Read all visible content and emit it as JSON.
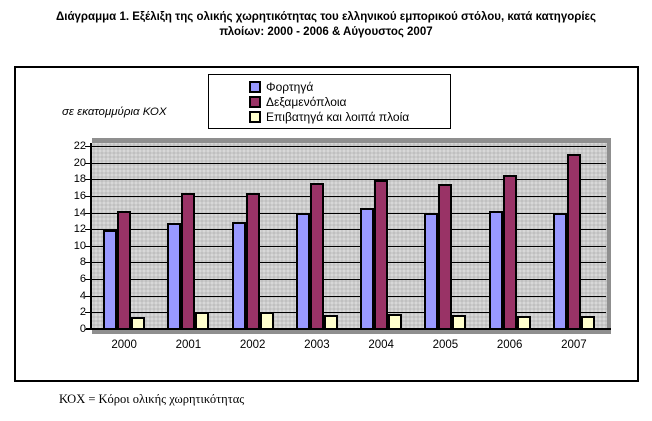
{
  "title": {
    "line1": "Διάγραμμα 1. Εξέλιξη της ολικής χωρητικότητας του ελληνικού εμπορικού στόλου, κατά κατηγορίες",
    "line2": "πλοίων: 2000 - 2006 & Αύγουστος 2007"
  },
  "unit_label": "σε εκατομμύρια ΚΟΧ",
  "footer_note": "ΚΟΧ  = Κόροι ολικής χωρητικότητας",
  "colors": {
    "cargo": "#9999FF",
    "tankers": "#993366",
    "passenger": "#FFFFCC",
    "plot_background": "#cbcbcb",
    "plot_shadow": "#8f8f8f",
    "gridline": "#000000"
  },
  "chart_data": {
    "type": "bar",
    "title": "Διάγραμμα 1. Εξέλιξη της ολικής χωρητικότητας του ελληνικού εμπορικού στόλου, κατά κατηγορίες πλοίων: 2000 - 2006 & Αύγουστος 2007",
    "xlabel": "",
    "ylabel": "σε εκατομμύρια ΚΟΧ",
    "categories": [
      "2000",
      "2001",
      "2002",
      "2003",
      "2004",
      "2005",
      "2006",
      "2007"
    ],
    "series": [
      {
        "name": "Φορτηγά",
        "color": "#9999FF",
        "values": [
          11.9,
          12.8,
          12.9,
          14.0,
          14.5,
          14.0,
          14.2,
          14.0
        ]
      },
      {
        "name": "Δεξαμενόπλοια",
        "color": "#993366",
        "values": [
          14.2,
          16.4,
          16.3,
          17.6,
          17.9,
          17.4,
          18.5,
          21.0
        ]
      },
      {
        "name": "Επιβατηγά και λοιπά πλοία",
        "color": "#FFFFCC",
        "values": [
          1.5,
          2.0,
          2.1,
          1.7,
          1.8,
          1.7,
          1.6,
          1.6
        ]
      }
    ],
    "ylim": [
      0,
      22
    ],
    "ytick_step": 2,
    "yticks": [
      0,
      2,
      4,
      6,
      8,
      10,
      12,
      14,
      16,
      18,
      20,
      22
    ],
    "grid": true,
    "legend_position": "top-center"
  }
}
